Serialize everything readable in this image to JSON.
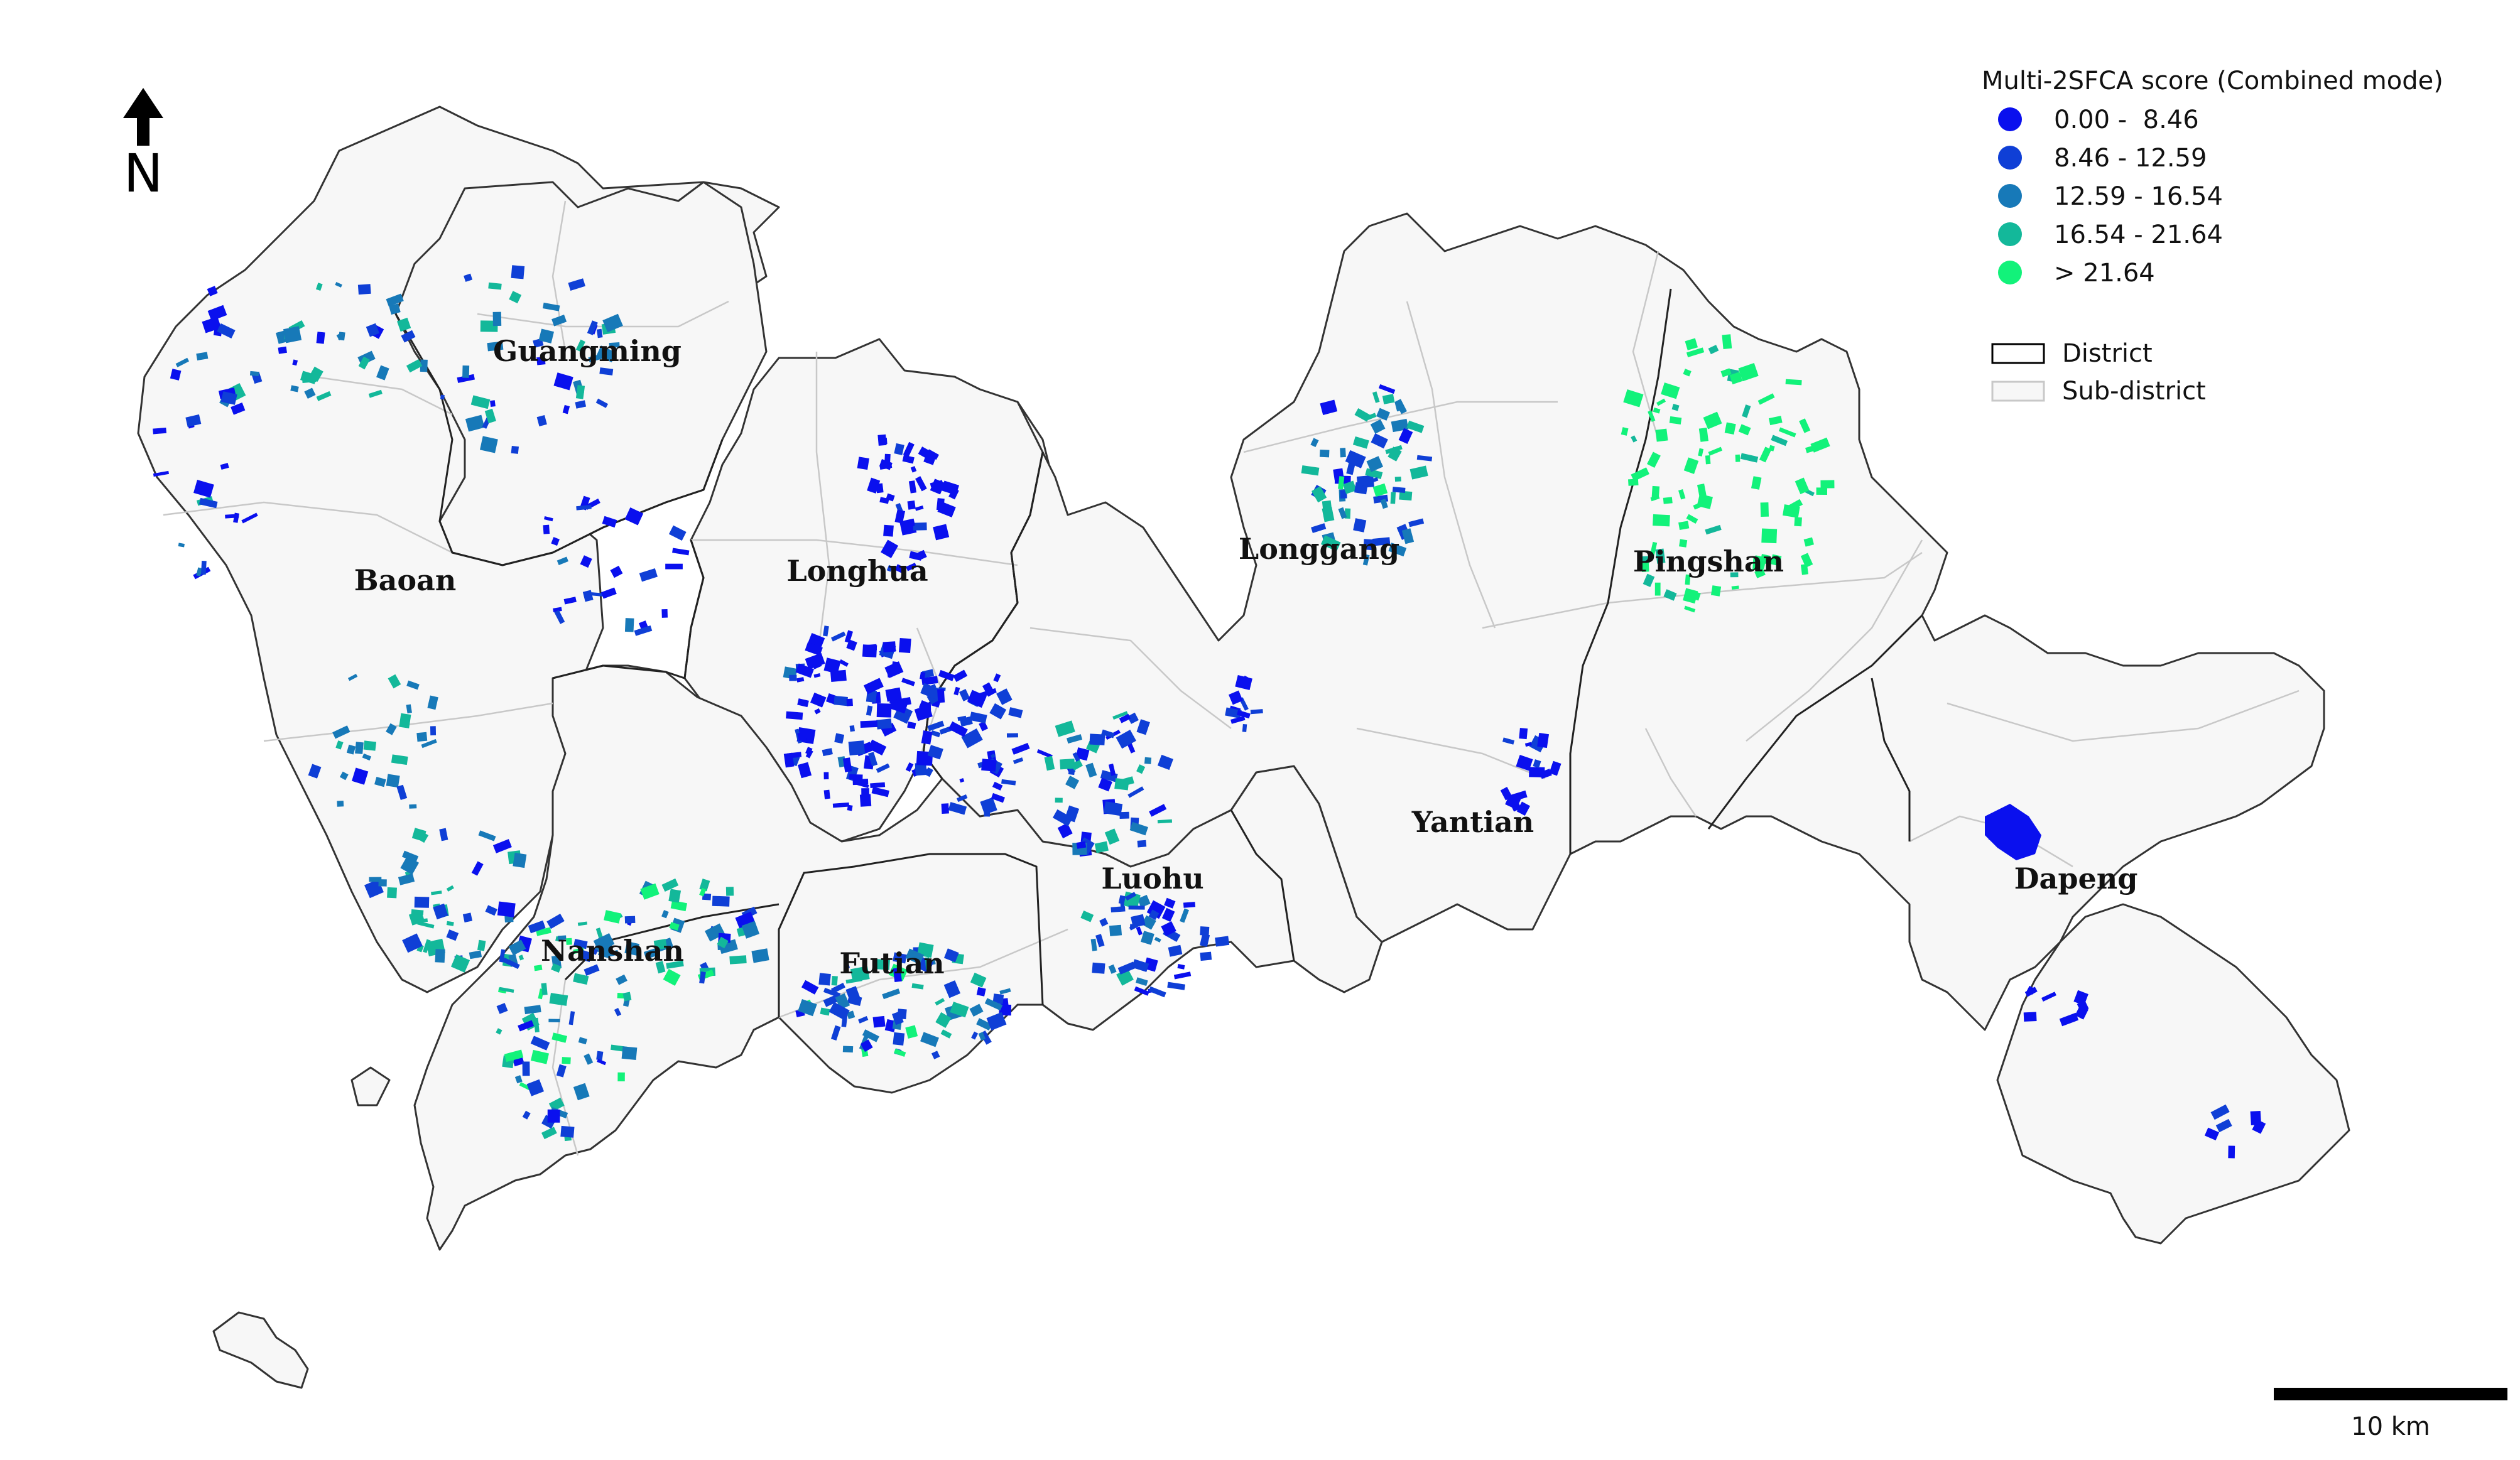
{
  "north_arrow": {
    "label": "N"
  },
  "legend": {
    "title": "Multi-2SFCA score (Combined mode)",
    "classes": [
      {
        "label": "0.00 -  8.46",
        "color": "#0a10ee"
      },
      {
        "label": "8.46 - 12.59",
        "color": "#0f3fd6"
      },
      {
        "label": "12.59 - 16.54",
        "color": "#1779b8"
      },
      {
        "label": "16.54 - 21.64",
        "color": "#13b89a"
      },
      {
        "label": "> 21.64",
        "color": "#12f27a"
      }
    ],
    "boundaries": [
      {
        "label": "District",
        "stroke": "#000000",
        "fill": "#ffffff"
      },
      {
        "label": "Sub-district",
        "stroke": "#c8c8c8",
        "fill": "#f7f7f7"
      }
    ]
  },
  "districts": [
    {
      "name": "Guangming"
    },
    {
      "name": "Baoan"
    },
    {
      "name": "Longhua"
    },
    {
      "name": "Longgang"
    },
    {
      "name": "Pingshan"
    },
    {
      "name": "Yantian"
    },
    {
      "name": "Luohu"
    },
    {
      "name": "Futian"
    },
    {
      "name": "Nanshan"
    },
    {
      "name": "Dapeng"
    }
  ],
  "scale_bar": {
    "label": "10 km"
  }
}
